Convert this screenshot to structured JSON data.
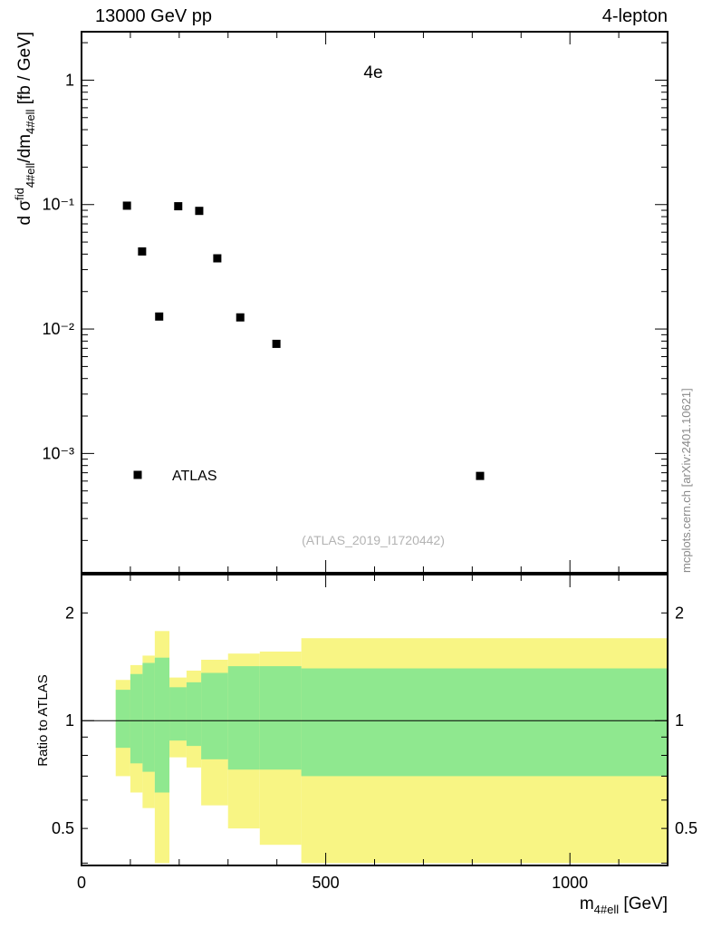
{
  "header": {
    "left": "13000 GeV pp",
    "right": "4-lepton"
  },
  "main_plot": {
    "title": "4e",
    "ylabel_segments": [
      {
        "t": "d "
      },
      {
        "t": "σ"
      },
      {
        "t": "fid",
        "s": "sup"
      },
      {
        "t": "4#ell",
        "s": "sub"
      },
      {
        "t": "/dm"
      },
      {
        "t": "4#ell",
        "s": "sub"
      },
      {
        "t": " [fb / GeV]"
      }
    ]
  },
  "ratio_plot": {
    "ylabel": "Ratio to ATLAS",
    "xlabel_segments": [
      {
        "t": "m"
      },
      {
        "t": "4#ell",
        "s": "sub"
      },
      {
        "t": " [GeV]"
      }
    ]
  },
  "legend": {
    "label": "ATLAS"
  },
  "watermark": "(ATLAS_2019_I1720442)",
  "side_note": "mcplots.cern.ch [arXiv:2401.10621]",
  "colors": {
    "background": "#ffffff",
    "frame": "#000000",
    "marker": "#000000",
    "band_outer": "#f8f584",
    "band_inner": "#8fe88f",
    "watermark": "#b3b3b3",
    "side_note": "#8a8a8a"
  },
  "axes": {
    "x": {
      "max": 1200,
      "major": [
        0,
        500,
        1000
      ],
      "labels": [
        "0",
        "500",
        "1000"
      ],
      "minor_step": 100
    },
    "main_y": {
      "major_values": [
        1,
        0.1,
        0.01,
        0.001
      ],
      "labels": [
        "1",
        "10⁻¹",
        "10⁻²",
        "10⁻³"
      ]
    },
    "ratio_y": {
      "labeled": [
        2,
        1,
        0.5
      ],
      "labels": [
        "2",
        "1",
        "0.5"
      ],
      "minor": [
        0.4,
        0.5,
        0.6,
        0.7,
        0.8,
        0.9,
        2
      ]
    }
  },
  "chart_data": [
    {
      "type": "scatter",
      "title": "4e",
      "xlabel": "m_4#ell [GeV]",
      "ylabel": "d sigma^fid_4#ell / dm_4#ell [fb / GeV]",
      "xscale": "linear",
      "yscale": "log",
      "xlim": [
        0,
        1200
      ],
      "ylim": [
        0.00011,
        2.45
      ],
      "marker": "filled-square",
      "marker_size": 9,
      "points": [
        [
          93,
          0.098
        ],
        [
          124,
          0.042
        ],
        [
          159,
          0.0126
        ],
        [
          198,
          0.097
        ],
        [
          241,
          0.089
        ],
        [
          278,
          0.037
        ],
        [
          325,
          0.0124
        ],
        [
          399,
          0.0076
        ],
        [
          816,
          0.00066
        ]
      ]
    },
    {
      "type": "band",
      "title": "Ratio to ATLAS",
      "yscale": "log",
      "ylim": [
        0.394,
        2.56
      ],
      "reference_line": 1,
      "legend_note": "inner = green uncertainty band, outer = yellow uncertainty band",
      "bands": [
        {
          "x": [
            70,
            100
          ],
          "outer": [
            0.7,
            1.3
          ],
          "inner": [
            0.84,
            1.22
          ]
        },
        {
          "x": [
            100,
            125
          ],
          "outer": [
            0.63,
            1.43
          ],
          "inner": [
            0.76,
            1.35
          ]
        },
        {
          "x": [
            125,
            150
          ],
          "outer": [
            0.57,
            1.52
          ],
          "inner": [
            0.72,
            1.45
          ]
        },
        {
          "x": [
            150,
            180
          ],
          "outer": [
            0.4,
            1.78
          ],
          "inner": [
            0.63,
            1.5
          ]
        },
        {
          "x": [
            180,
            215
          ],
          "outer": [
            0.79,
            1.32
          ],
          "inner": [
            0.88,
            1.24
          ]
        },
        {
          "x": [
            215,
            245
          ],
          "outer": [
            0.74,
            1.38
          ],
          "inner": [
            0.85,
            1.28
          ]
        },
        {
          "x": [
            245,
            300
          ],
          "outer": [
            0.58,
            1.48
          ],
          "inner": [
            0.78,
            1.36
          ]
        },
        {
          "x": [
            300,
            365
          ],
          "outer": [
            0.5,
            1.54
          ],
          "inner": [
            0.73,
            1.42
          ]
        },
        {
          "x": [
            365,
            450
          ],
          "outer": [
            0.45,
            1.56
          ],
          "inner": [
            0.73,
            1.42
          ]
        },
        {
          "x": [
            450,
            1200
          ],
          "outer": [
            0.4,
            1.7
          ],
          "inner": [
            0.7,
            1.4
          ]
        }
      ]
    }
  ]
}
